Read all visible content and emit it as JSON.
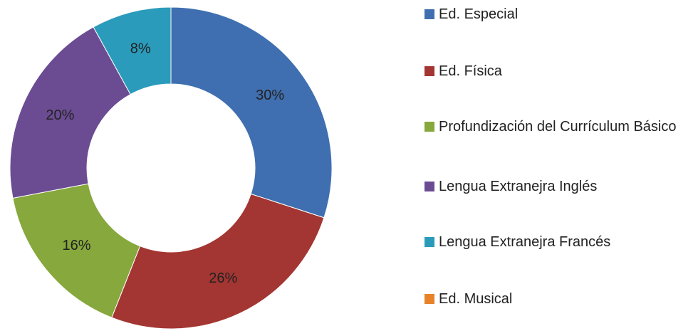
{
  "chart_data": {
    "type": "donut",
    "categories": [
      "Ed. Especial",
      "Ed. Física",
      "Profundización del Currículum Básico",
      "Lengua Extranejra Inglés",
      "Lengua Extranejra Francés",
      "Ed. Musical"
    ],
    "values": [
      30,
      26,
      16,
      20,
      8,
      0
    ],
    "value_labels": [
      "30%",
      "26%",
      "16%",
      "20%",
      "8%",
      null
    ],
    "colors": [
      "#3f6fb0",
      "#a33632",
      "#86a83c",
      "#6b4c93",
      "#2b9bbb",
      "#e8822a"
    ],
    "legend": "right"
  }
}
